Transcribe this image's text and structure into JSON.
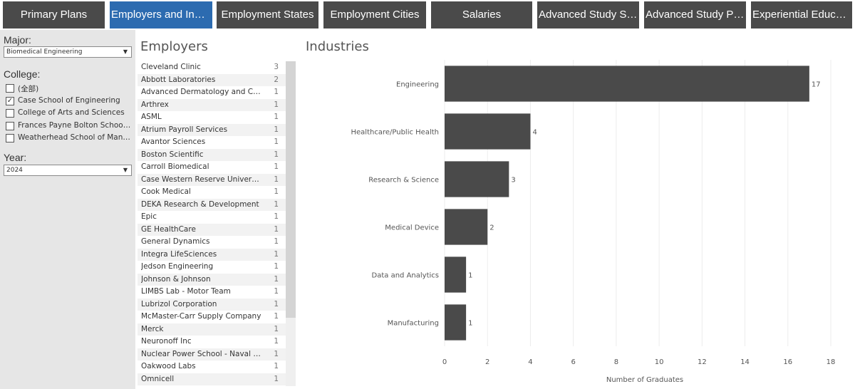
{
  "tabs": [
    {
      "label": "Primary Plans",
      "active": false
    },
    {
      "label": "Employers and Industries",
      "active": true
    },
    {
      "label": "Employment States",
      "active": false
    },
    {
      "label": "Employment Cities",
      "active": false
    },
    {
      "label": "Salaries",
      "active": false
    },
    {
      "label": "Advanced Study Schools",
      "active": false
    },
    {
      "label": "Advanced Study Programs",
      "active": false
    },
    {
      "label": "Experiential Education",
      "active": false
    }
  ],
  "filters": {
    "major_label": "Major:",
    "major_value": "Biomedical Engineering",
    "college_label": "College:",
    "college_options": [
      {
        "label": "(全部)",
        "checked": false
      },
      {
        "label": "Case School of Engineering",
        "checked": true
      },
      {
        "label": "College of Arts and Sciences",
        "checked": false
      },
      {
        "label": "Frances Payne Bolton School of Nursing",
        "checked": false
      },
      {
        "label": "Weatherhead School of Management",
        "checked": false
      }
    ],
    "year_label": "Year:",
    "year_value": "2024"
  },
  "employers": {
    "title": "Employers",
    "rows": [
      {
        "name": "Cleveland Clinic",
        "count": "3"
      },
      {
        "name": "Abbott Laboratories",
        "count": "2"
      },
      {
        "name": "Advanced Dermatology and Cosmetic Surgery",
        "count": "1"
      },
      {
        "name": "Arthrex",
        "count": "1"
      },
      {
        "name": "ASML",
        "count": "1"
      },
      {
        "name": "Atrium Payroll Services",
        "count": "1"
      },
      {
        "name": "Avantor Sciences",
        "count": "1"
      },
      {
        "name": "Boston Scientific",
        "count": "1"
      },
      {
        "name": "Carroll Biomedical",
        "count": "1"
      },
      {
        "name": "Case Western Reserve University",
        "count": "1"
      },
      {
        "name": "Cook Medical",
        "count": "1"
      },
      {
        "name": "DEKA Research & Development",
        "count": "1"
      },
      {
        "name": "Epic",
        "count": "1"
      },
      {
        "name": "GE HealthCare",
        "count": "1"
      },
      {
        "name": "General Dynamics",
        "count": "1"
      },
      {
        "name": "Integra LifeSciences",
        "count": "1"
      },
      {
        "name": "Jedson Engineering",
        "count": "1"
      },
      {
        "name": "Johnson & Johnson",
        "count": "1"
      },
      {
        "name": "LIMBS Lab - Motor Team",
        "count": "1"
      },
      {
        "name": "Lubrizol Corporation",
        "count": "1"
      },
      {
        "name": "McMaster-Carr Supply Company",
        "count": "1"
      },
      {
        "name": "Merck",
        "count": "1"
      },
      {
        "name": "Neuronoff Inc",
        "count": "1"
      },
      {
        "name": "Nuclear Power School - Naval Nuclear",
        "count": "1"
      },
      {
        "name": "Oakwood Labs",
        "count": "1"
      },
      {
        "name": "Omnicell",
        "count": "1"
      }
    ]
  },
  "industries": {
    "title": "Industries"
  },
  "chart_data": {
    "type": "bar",
    "orientation": "horizontal",
    "title": "Industries",
    "categories": [
      "Engineering",
      "Healthcare/Public Health",
      "Research & Science",
      "Medical Device",
      "Data and Analytics",
      "Manufacturing"
    ],
    "values": [
      17,
      4,
      3,
      2,
      1,
      1
    ],
    "xlabel": "Number of Graduates",
    "ylabel": "",
    "xlim": [
      0,
      18
    ],
    "xticks": [
      0,
      2,
      4,
      6,
      8,
      10,
      12,
      14,
      16,
      18
    ],
    "grid": true,
    "bar_color": "#4a4a4a"
  }
}
